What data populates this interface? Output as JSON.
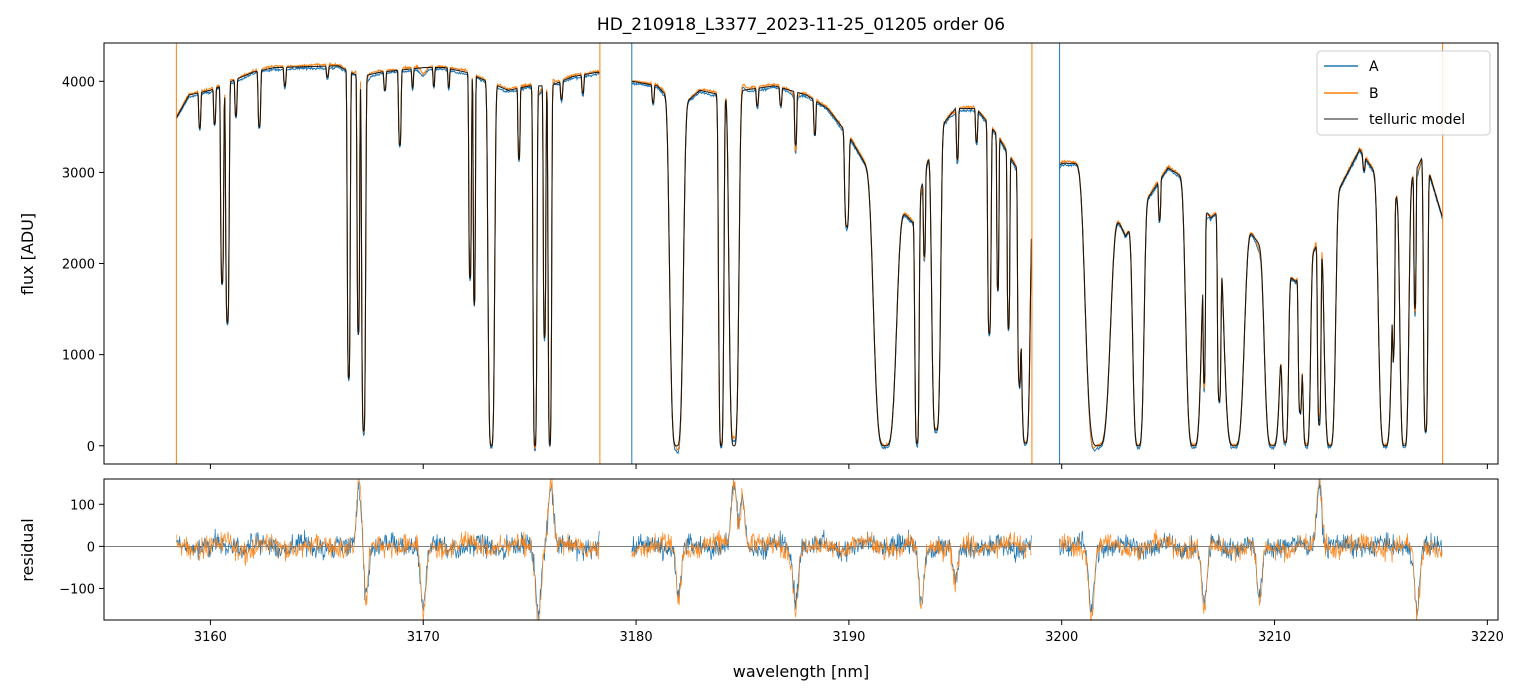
{
  "chart_data": {
    "type": "line",
    "title": "HD_210918_L3377_2023-11-25_01205  order 06",
    "xlabel": "wavelength [nm]",
    "xlim": [
      3155.0,
      3220.5
    ],
    "xticks": [
      3160,
      3170,
      3180,
      3190,
      3200,
      3210,
      3220
    ],
    "legend": {
      "placement": "top-right",
      "entries": [
        "A",
        "B",
        "telluric model"
      ]
    },
    "colors": {
      "A": "#1f77b4",
      "B": "#ff7f0e",
      "model": "#000000",
      "zero_line": "#555555"
    },
    "panels": [
      {
        "name": "flux",
        "ylabel": "flux [ADU]",
        "ylim": [
          -200,
          4420
        ],
        "yticks": [
          0,
          1000,
          2000,
          3000,
          4000
        ]
      },
      {
        "name": "residual",
        "ylabel": "residual",
        "ylim": [
          -175,
          160
        ],
        "yticks": [
          -100,
          0,
          100
        ]
      }
    ],
    "data_range": [
      3158.4,
      3217.9
    ],
    "gaps": [
      [
        3178.3,
        3179.8
      ],
      [
        3198.6,
        3199.9
      ]
    ],
    "continuum": [
      [
        3158.4,
        3600
      ],
      [
        3159,
        3850
      ],
      [
        3160,
        3900
      ],
      [
        3161,
        4000
      ],
      [
        3162,
        4100
      ],
      [
        3163,
        4150
      ],
      [
        3166,
        4170
      ],
      [
        3167,
        4050
      ],
      [
        3168,
        4100
      ],
      [
        3170,
        4150
      ],
      [
        3171,
        4150
      ],
      [
        3172,
        4100
      ],
      [
        3174,
        3900
      ],
      [
        3175,
        3950
      ],
      [
        3176,
        3950
      ],
      [
        3177,
        4050
      ],
      [
        3178.2,
        4100
      ],
      [
        3179.8,
        4000
      ],
      [
        3181,
        3950
      ],
      [
        3182,
        3700
      ],
      [
        3183,
        3900
      ],
      [
        3184,
        3850
      ],
      [
        3185,
        3900
      ],
      [
        3186.5,
        3950
      ],
      [
        3188,
        3850
      ],
      [
        3189,
        3700
      ],
      [
        3190,
        3400
      ],
      [
        3191,
        3000
      ],
      [
        3192,
        2700
      ],
      [
        3193,
        2450
      ],
      [
        3194,
        3400
      ],
      [
        3195,
        3700
      ],
      [
        3196,
        3700
      ],
      [
        3197,
        3400
      ],
      [
        3198,
        3000
      ],
      [
        3198.5,
        2700
      ],
      [
        3200,
        3100
      ],
      [
        3201,
        3100
      ],
      [
        3202,
        2800
      ],
      [
        3203,
        2300
      ],
      [
        3204,
        2700
      ],
      [
        3205,
        3050
      ],
      [
        3206,
        2900
      ],
      [
        3207,
        2500
      ],
      [
        3208,
        2700
      ],
      [
        3209,
        2300
      ],
      [
        3210,
        2000
      ],
      [
        3211,
        1800
      ],
      [
        3212,
        2200
      ],
      [
        3213,
        2800
      ],
      [
        3214,
        3250
      ],
      [
        3215,
        2900
      ],
      [
        3216,
        2700
      ],
      [
        3217,
        3200
      ],
      [
        3217.9,
        2500
      ]
    ],
    "absorption_lines": [
      [
        3159.5,
        0.1,
        0.05
      ],
      [
        3160.2,
        0.1,
        0.05
      ],
      [
        3160.55,
        0.55,
        0.07
      ],
      [
        3160.8,
        0.66,
        0.08
      ],
      [
        3161.2,
        0.1,
        0.05
      ],
      [
        3162.3,
        0.15,
        0.06
      ],
      [
        3163.5,
        0.05,
        0.05
      ],
      [
        3165.5,
        0.03,
        0.05
      ],
      [
        3166.5,
        0.82,
        0.07
      ],
      [
        3166.95,
        0.7,
        0.06
      ],
      [
        3167.2,
        0.96,
        0.09
      ],
      [
        3168.2,
        0.05,
        0.05
      ],
      [
        3168.9,
        0.2,
        0.06
      ],
      [
        3169.5,
        0.05,
        0.04
      ],
      [
        3170.5,
        0.05,
        0.04
      ],
      [
        3171.2,
        0.05,
        0.04
      ],
      [
        3172.2,
        0.55,
        0.06
      ],
      [
        3172.4,
        0.62,
        0.05
      ],
      [
        3173.2,
        1.0,
        0.15
      ],
      [
        3174.5,
        0.2,
        0.05
      ],
      [
        3175.25,
        1.0,
        0.09
      ],
      [
        3175.7,
        0.7,
        0.06
      ],
      [
        3175.95,
        1.0,
        0.08
      ],
      [
        3176.5,
        0.05,
        0.05
      ],
      [
        3177.5,
        0.05,
        0.05
      ],
      [
        3180.8,
        0.05,
        0.05
      ],
      [
        3181.9,
        1.0,
        0.3
      ],
      [
        3184.0,
        1.0,
        0.12
      ],
      [
        3184.6,
        1.0,
        0.22
      ],
      [
        3185.7,
        0.05,
        0.05
      ],
      [
        3186.8,
        0.05,
        0.05
      ],
      [
        3187.5,
        0.15,
        0.05
      ],
      [
        3188.4,
        0.1,
        0.05
      ],
      [
        3189.9,
        0.3,
        0.1
      ],
      [
        3191.7,
        1.0,
        0.5
      ],
      [
        3193.2,
        0.99,
        0.1
      ],
      [
        3193.55,
        0.3,
        0.05
      ],
      [
        3194.1,
        0.95,
        0.2
      ],
      [
        3195.1,
        0.15,
        0.05
      ],
      [
        3196.0,
        0.1,
        0.05
      ],
      [
        3196.6,
        0.65,
        0.08
      ],
      [
        3197.0,
        0.5,
        0.05
      ],
      [
        3197.5,
        0.6,
        0.06
      ],
      [
        3198.0,
        0.75,
        0.07
      ],
      [
        3198.3,
        0.99,
        0.2
      ],
      [
        3201.7,
        1.0,
        0.55
      ],
      [
        3203.6,
        1.0,
        0.25
      ],
      [
        3204.6,
        0.15,
        0.05
      ],
      [
        3206.2,
        1.0,
        0.35
      ],
      [
        3206.7,
        0.7,
        0.05
      ],
      [
        3207.4,
        0.8,
        0.08
      ],
      [
        3208.1,
        1.0,
        0.45
      ],
      [
        3209.9,
        1.0,
        0.35
      ],
      [
        3210.5,
        0.98,
        0.15
      ],
      [
        3211.2,
        0.8,
        0.08
      ],
      [
        3211.5,
        1.0,
        0.18
      ],
      [
        3212.1,
        0.9,
        0.08
      ],
      [
        3212.6,
        1.0,
        0.25
      ],
      [
        3214.2,
        0.05,
        0.05
      ],
      [
        3215.2,
        1.0,
        0.3
      ],
      [
        3215.6,
        0.55,
        0.05
      ],
      [
        3216.1,
        1.0,
        0.2
      ],
      [
        3216.6,
        0.5,
        0.05
      ],
      [
        3217.1,
        0.95,
        0.1
      ]
    ],
    "residual_features": [
      [
        3167.0,
        160
      ],
      [
        3167.3,
        -130
      ],
      [
        3170.0,
        -170
      ],
      [
        3175.4,
        -175
      ],
      [
        3176.0,
        160
      ],
      [
        3182.0,
        -120
      ],
      [
        3184.6,
        160
      ],
      [
        3185.0,
        120
      ],
      [
        3187.5,
        -140
      ],
      [
        3193.4,
        -150
      ],
      [
        3195.0,
        -90
      ],
      [
        3201.4,
        -170
      ],
      [
        3206.7,
        -160
      ],
      [
        3209.3,
        -140
      ],
      [
        3212.1,
        160
      ],
      [
        3216.7,
        -170
      ]
    ]
  }
}
